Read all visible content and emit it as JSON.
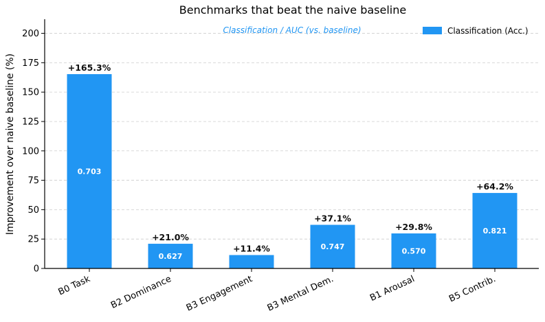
{
  "chart_data": {
    "type": "bar",
    "title": "Benchmarks that beat the naive baseline",
    "xlabel": "",
    "ylabel": "Improvement over naive baseline  (%)",
    "annotation": "Classification / AUC  (vs. baseline)",
    "ylim": [
      0,
      212
    ],
    "yticks": [
      0,
      25,
      50,
      75,
      100,
      125,
      150,
      175,
      200
    ],
    "grid": true,
    "legend_position": "top-right",
    "categories": [
      "B0 Task",
      "B2 Dominance",
      "B3 Engagement",
      "B3 Mental Dem.",
      "B1 Arousal",
      "B5 Contrib."
    ],
    "series": [
      {
        "name": "Classification (Acc.)",
        "color": "#2196f3",
        "values": [
          165.3,
          21.0,
          11.4,
          37.1,
          29.8,
          64.2
        ],
        "top_labels": [
          "+165.3%",
          "+21.0%",
          "+11.4%",
          "+37.1%",
          "+29.8%",
          "+64.2%"
        ],
        "inner_labels": [
          "0.703",
          "0.627",
          "",
          "0.747",
          "0.570",
          "0.821"
        ]
      }
    ]
  }
}
